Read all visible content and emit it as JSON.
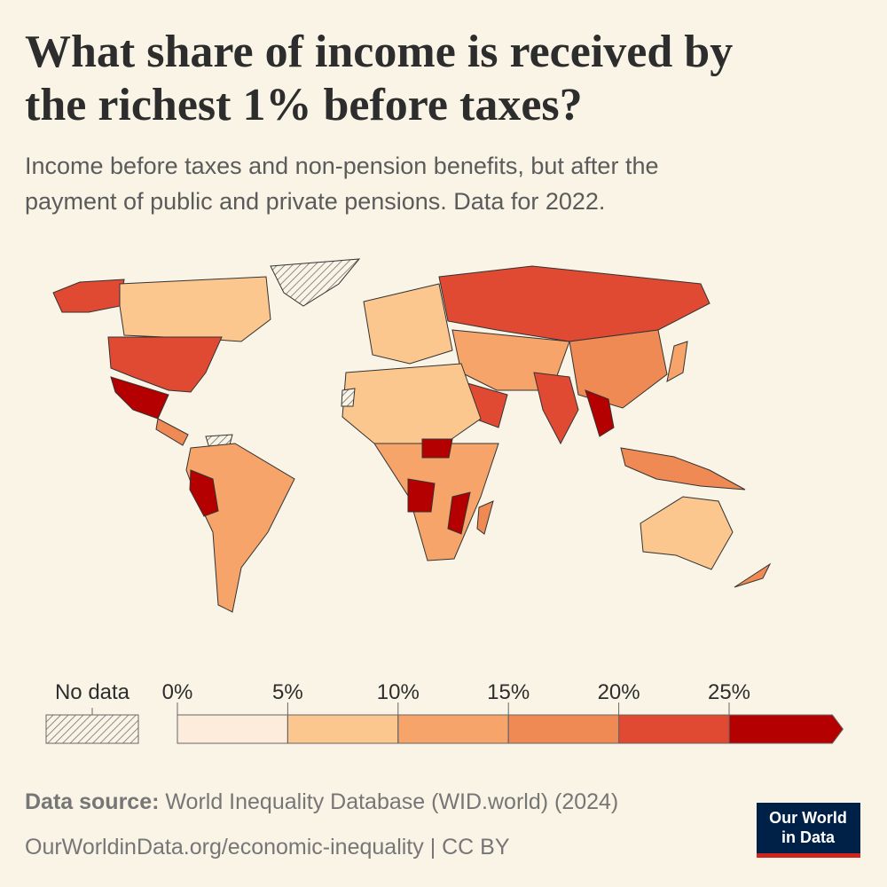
{
  "chart_data": {
    "type": "choropleth",
    "title": [
      "What share of income is received by",
      "the richest 1% before taxes?"
    ],
    "subtitle": [
      "Income before taxes and non-pension benefits, but after the",
      "payment of public and private pensions. Data for 2022."
    ],
    "legend": {
      "no_data_label": "No data",
      "ticks": [
        {
          "value": 0,
          "label": "0%"
        },
        {
          "value": 5,
          "label": "5%"
        },
        {
          "value": 10,
          "label": "10%"
        },
        {
          "value": 15,
          "label": "15%"
        },
        {
          "value": 20,
          "label": "20%"
        },
        {
          "value": 25,
          "label": "25%"
        }
      ],
      "colors": [
        "#fdecdb",
        "#fbc78f",
        "#f6a46a",
        "#f08a55",
        "#e04a32",
        "#b40000"
      ]
    },
    "source_label": "Data source:",
    "source": "World Inequality Database (WID.world) (2024)",
    "footer": "OurWorldinData.org/economic-inequality | CC BY",
    "logo": [
      "Our World",
      "in Data"
    ]
  }
}
